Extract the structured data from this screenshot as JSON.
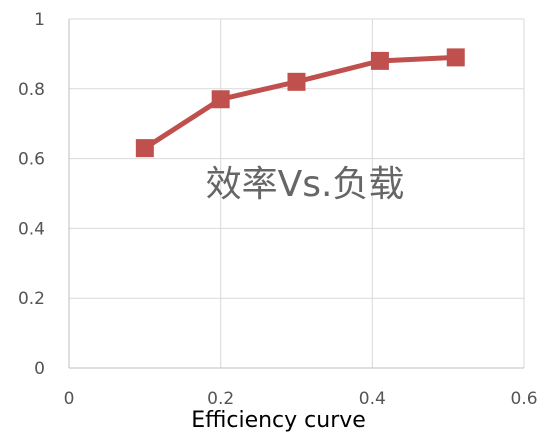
{
  "chart_data": {
    "type": "line",
    "title": "效率Vs.负载",
    "xlabel": "",
    "ylabel": "",
    "xlim": [
      0,
      0.6
    ],
    "ylim": [
      0,
      1
    ],
    "xticks": [
      0,
      0.2,
      0.4,
      0.6
    ],
    "xtick_labels": [
      "0",
      "0.2",
      "0.4",
      "0.6"
    ],
    "yticks": [
      0,
      0.2,
      0.4,
      0.6,
      0.8,
      1
    ],
    "ytick_labels": [
      "0",
      "0.2",
      "0.4",
      "0.6",
      "0.8",
      "1"
    ],
    "grid": true,
    "legend": "none",
    "series": [
      {
        "x": [
          0.1,
          0.2,
          0.3,
          0.41,
          0.51
        ],
        "y": [
          0.63,
          0.77,
          0.82,
          0.88,
          0.89
        ],
        "color": "#c0504d",
        "marker": "square"
      }
    ]
  },
  "caption": "Efficiency curve"
}
